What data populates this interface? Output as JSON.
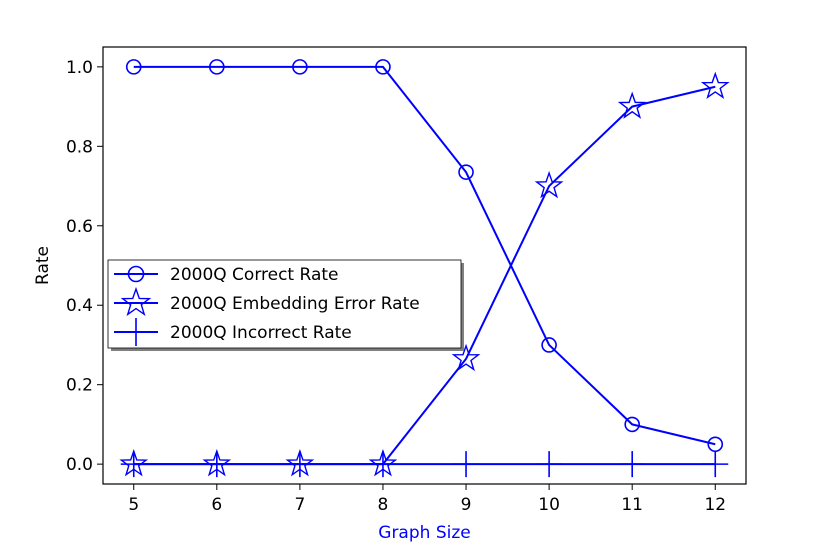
{
  "chart_data": {
    "type": "line",
    "title": "",
    "xlabel": "Graph Size",
    "ylabel": "Rate",
    "x": [
      5,
      6,
      7,
      8,
      9,
      10,
      11,
      12
    ],
    "xticks": [
      "5",
      "6",
      "7",
      "8",
      "9",
      "10",
      "11",
      "12"
    ],
    "yticks": [
      "0.0",
      "0.2",
      "0.4",
      "0.6",
      "0.8",
      "1.0"
    ],
    "ytick_values": [
      0.0,
      0.2,
      0.4,
      0.6,
      0.8,
      1.0
    ],
    "xlim": [
      4.63,
      12.37
    ],
    "ylim": [
      -0.05,
      1.05
    ],
    "grid": false,
    "legend_position": "center-left",
    "series": [
      {
        "name": "2000Q Correct Rate",
        "marker": "circle",
        "color": "#0000ff",
        "values": [
          1.0,
          1.0,
          1.0,
          1.0,
          0.735,
          0.3,
          0.1,
          0.05
        ]
      },
      {
        "name": "2000Q Embedding Error Rate",
        "marker": "star",
        "color": "#0000ff",
        "values": [
          0.0,
          0.0,
          0.0,
          0.0,
          0.265,
          0.7,
          0.9,
          0.95
        ]
      },
      {
        "name": "2000Q Incorrect Rate",
        "marker": "plus",
        "color": "#0000ff",
        "values": [
          0.0,
          0.0,
          0.0,
          0.0,
          0.0,
          0.0,
          0.0,
          0.0
        ]
      }
    ]
  }
}
